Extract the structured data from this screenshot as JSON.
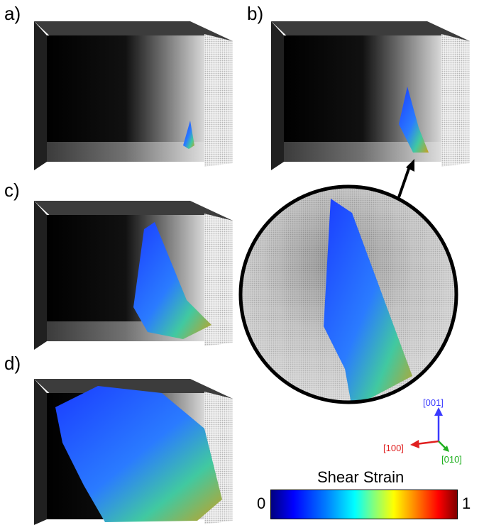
{
  "panels": {
    "a": {
      "label": "a)"
    },
    "b": {
      "label": "b)"
    },
    "c": {
      "label": "c)"
    },
    "d": {
      "label": "d)"
    }
  },
  "axes": {
    "z_label": "[001]",
    "x_label": "[100]",
    "y_label": "[010]",
    "colors": {
      "z": "#3a3aff",
      "x": "#e02020",
      "y": "#20b020"
    }
  },
  "colorbar": {
    "title": "Shear Strain",
    "min_label": "0",
    "max_label": "1"
  }
}
